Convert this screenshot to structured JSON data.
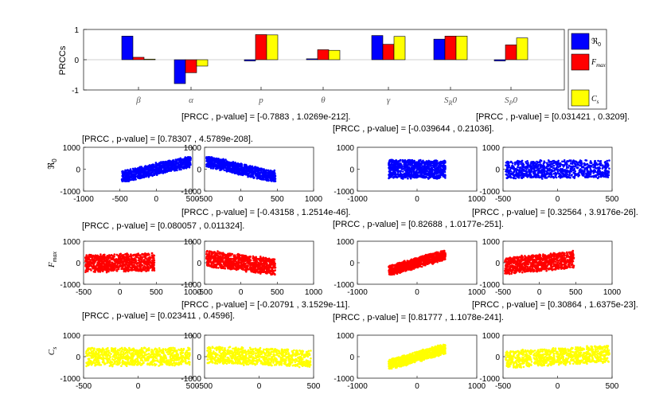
{
  "chart_data": [
    {
      "type": "bar",
      "ylabel": "PRCCs",
      "ylim": [
        -1,
        1
      ],
      "yticks": [
        -1,
        0,
        1
      ],
      "categories": [
        "β",
        "α",
        "p",
        "θ",
        "γ",
        "S_R0",
        "S_P0"
      ],
      "series": [
        {
          "name": "ℜ0",
          "color": "#0000ff",
          "values": [
            0.78,
            -0.79,
            -0.04,
            0.03,
            0.8,
            0.68,
            -0.04
          ]
        },
        {
          "name": "Fmax",
          "color": "#ff0000",
          "values": [
            0.08,
            -0.43,
            0.83,
            0.33,
            0.51,
            0.78,
            0.49
          ]
        },
        {
          "name": "Cs",
          "color": "#ffff00",
          "values": [
            0.02,
            -0.21,
            0.82,
            0.31,
            0.77,
            0.78,
            0.72
          ]
        }
      ],
      "legend": {
        "position": "right",
        "entries": [
          "ℜ0",
          "Fmax",
          "Cs"
        ]
      }
    },
    {
      "type": "scatter",
      "rows": [
        {
          "ylabel": "ℜ0",
          "color": "#0000ff",
          "ylim": [
            -1000,
            1000
          ],
          "yticks": [
            "1000",
            "0",
            "-1000"
          ]
        },
        {
          "ylabel": "Fmax",
          "color": "#ff0000",
          "ylim": [
            -1000,
            1000
          ],
          "yticks": [
            "1000",
            "0",
            "-1000"
          ]
        },
        {
          "ylabel": "Cs",
          "color": "#ffff00",
          "ylim": [
            -1000,
            1000
          ],
          "yticks": [
            "1000",
            "0",
            "-1000"
          ]
        }
      ],
      "columns": [
        {
          "xlim": [
            -1000,
            500
          ],
          "xticks": [
            "-1000",
            "-500",
            "0",
            "500"
          ],
          "corr": [
            0.78,
            0.08,
            0.02
          ]
        },
        {
          "xlim": [
            -500,
            1000
          ],
          "xticks": [
            "-500",
            "0",
            "500",
            "1000"
          ],
          "corr": [
            -0.79,
            -0.43,
            -0.21
          ]
        },
        {
          "xlim": [
            -1000,
            1000
          ],
          "xticks": [
            "-1000",
            "0",
            "1000"
          ],
          "corr": [
            -0.04,
            0.83,
            0.82
          ]
        },
        {
          "xlim": [
            -500,
            500
          ],
          "xticks": [
            "-500",
            "0",
            "500"
          ],
          "corr": [
            0.03,
            0.33,
            0.31
          ]
        }
      ],
      "row_xticks": [
        [
          [
            "-1000",
            "-500",
            "0",
            "500"
          ],
          [
            "-500",
            "0",
            "500",
            "1000"
          ],
          [
            "-1000",
            "0",
            "1000"
          ],
          [
            "-500",
            "0",
            "500"
          ]
        ],
        [
          [
            "-500",
            "0",
            "500",
            "1000"
          ],
          [
            "-500",
            "0",
            "500",
            "1000"
          ],
          [
            "-1000",
            "0",
            "1000"
          ],
          [
            "-500",
            "0",
            "500",
            "1000"
          ]
        ],
        [
          [
            "-500",
            "0",
            "500"
          ],
          [
            "-500",
            "0",
            "500"
          ],
          [
            "-1000",
            "0",
            "1000"
          ],
          [
            "-500",
            "0",
            "500"
          ]
        ]
      ],
      "annotations": [
        [
          "[PRCC , p-value] = [0.78307 , 4.5789e-208].",
          "[PRCC , p-value] = [-0.7883 , 1.0269e-212].",
          "[PRCC , p-value] = [-0.039644 , 0.21036].",
          "[PRCC , p-value] = [0.031421 , 0.3209]."
        ],
        [
          "[PRCC , p-value] = [0.080057 , 0.011324].",
          "[PRCC , p-value] = [-0.43158 , 1.2514e-46].",
          "[PRCC , p-value] = [0.82688 , 1.0177e-251].",
          "[PRCC , p-value] = [0.32564 , 3.9176e-26]."
        ],
        [
          "[PRCC , p-value] = [0.023411 , 0.4596].",
          "[PRCC , p-value] = [-0.20791 , 3.1529e-11].",
          "[PRCC , p-value] = [0.81777 , 1.1078e-241].",
          "[PRCC , p-value] = [0.30864 , 1.6375e-23]."
        ]
      ]
    }
  ]
}
